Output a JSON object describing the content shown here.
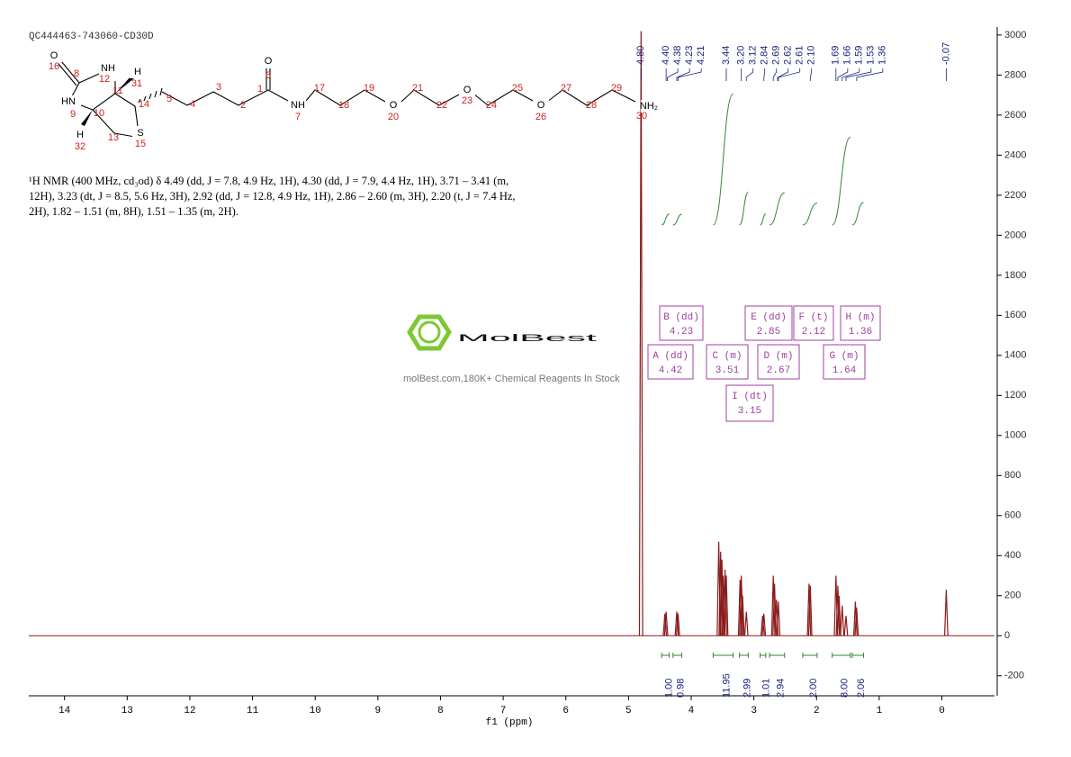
{
  "chart_data": {
    "type": "nmr",
    "title": "QC444463-743060-CD30D",
    "description": "¹H NMR (400 MHz, cd₃od) δ 4.49 (dd, J = 7.8, 4.9 Hz, 1H), 4.30 (dd, J = 7.9, 4.4 Hz, 1H), 3.71 – 3.41 (m, 12H), 3.23 (dt, J = 8.5, 5.6 Hz, 3H), 2.92 (dd, J = 12.8, 4.9 Hz, 1H), 2.86 – 2.60 (m, 3H), 2.20 (t, J = 7.4 Hz, 2H), 1.82 – 1.51 (m, 8H), 1.51 – 1.35 (m, 2H).",
    "xlabel": "f1 (ppm)",
    "xlim": [
      14.57,
      -0.84
    ],
    "xticks": [
      14,
      13,
      12,
      11,
      10,
      9,
      8,
      7,
      6,
      5,
      4,
      3,
      2,
      1,
      0
    ],
    "ylim": [
      -300,
      3040
    ],
    "yticks": [
      -200,
      0,
      200,
      400,
      600,
      800,
      1000,
      1200,
      1400,
      1600,
      1800,
      2000,
      2200,
      2400,
      2600,
      2800,
      3000
    ],
    "color": "#8b1a1a",
    "x": [
      4.8,
      4.42,
      4.4,
      4.23,
      4.21,
      3.56,
      3.53,
      3.51,
      3.49,
      3.46,
      3.44,
      3.22,
      3.2,
      3.18,
      3.12,
      2.86,
      2.84,
      2.69,
      2.67,
      2.64,
      2.61,
      2.12,
      2.1,
      1.69,
      1.66,
      1.64,
      1.59,
      1.53,
      1.38,
      1.36,
      -0.07
    ],
    "values": [
      3020,
      110,
      120,
      120,
      110,
      470,
      420,
      380,
      300,
      330,
      300,
      280,
      300,
      200,
      120,
      100,
      110,
      300,
      260,
      180,
      170,
      260,
      250,
      300,
      250,
      200,
      150,
      100,
      170,
      140,
      230
    ],
    "peak_labels": [
      {
        "value": 4.8,
        "label": "4.80"
      },
      {
        "value": 4.4,
        "label": "4.40"
      },
      4.38,
      4.23,
      4.21,
      3.44,
      {
        "value": 3.2,
        "label": "3.20"
      },
      3.12,
      2.84,
      2.69,
      2.62,
      2.61,
      {
        "value": 2.1,
        "label": "2.10"
      },
      1.69,
      1.66,
      1.59,
      1.53,
      1.36,
      -0.07
    ],
    "peak_label_color": "#1a237e",
    "integral_color": "#2e8b2e",
    "integral_ranges": [
      [
        4.47,
        4.35
      ],
      [
        4.29,
        4.15
      ],
      [
        3.65,
        3.33
      ],
      [
        3.23,
        3.09
      ],
      [
        2.9,
        2.81
      ],
      [
        2.75,
        2.51
      ],
      [
        2.22,
        1.99
      ],
      [
        1.75,
        1.46
      ],
      [
        1.43,
        1.25
      ]
    ],
    "integrals": [
      {
        "value": 1,
        "label": "1.00"
      },
      0.98,
      11.95,
      2.99,
      1.01,
      2.94,
      {
        "value": 2,
        "label": "2.00"
      },
      {
        "value": 8,
        "label": "8.00"
      },
      2.06
    ],
    "multiplet_color": "#a040a0",
    "multiplets": [
      {
        "label": "A (dd)",
        "shift": 4.42
      },
      {
        "label": "B (dd)",
        "shift": 4.23
      },
      {
        "label": "C (m)",
        "shift": 3.51
      },
      {
        "label": "D (m)",
        "shift": 2.67
      },
      {
        "label": "E (dd)",
        "shift": 2.85
      },
      {
        "label": "F (t)",
        "shift": 2.12
      },
      {
        "label": "G (m)",
        "shift": 1.64
      },
      {
        "label": "H (m)",
        "shift": 1.36
      },
      {
        "label": "I (dt)",
        "shift": 3.15
      }
    ],
    "molecule": {
      "labels": [
        "O",
        "16",
        "8",
        "NH",
        "12",
        "H",
        "31",
        "11",
        "14",
        "5",
        "HN",
        "9",
        "10",
        "H",
        "32",
        "13",
        "S",
        "15",
        "4",
        "3",
        "2",
        "1",
        "O",
        "6",
        "NH",
        "7",
        "17",
        "18",
        "19",
        "O",
        "20",
        "21",
        "22",
        "O",
        "23",
        "24",
        "25",
        "O",
        "26",
        "27",
        "28",
        "29",
        "NH₂",
        "30"
      ]
    },
    "watermark": {
      "logo": "MolBest",
      "text": "molBest.com,180K+ Chemical Reagents In Stock"
    }
  }
}
